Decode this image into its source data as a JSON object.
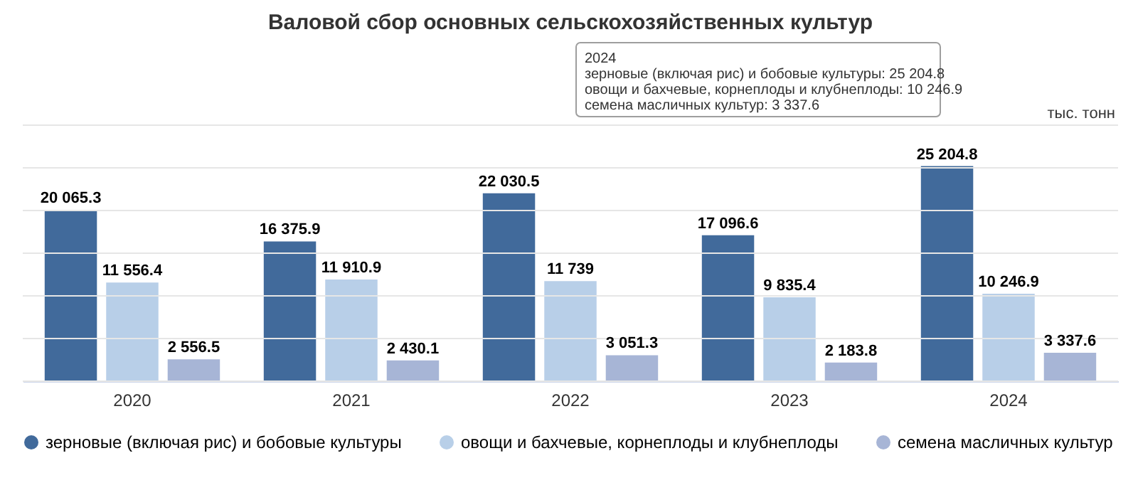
{
  "chart_data": {
    "type": "bar",
    "title": "Валовой сбор основных сельскохозяйственных культур",
    "categories": [
      "2020",
      "2021",
      "2022",
      "2023",
      "2024"
    ],
    "series": [
      {
        "name": "зерновые (включая рис) и бобовые культуры",
        "color": "#416a9b",
        "values": [
          20065.3,
          16375.9,
          22030.5,
          17096.6,
          25204.8
        ],
        "value_labels": [
          "20 065.3",
          "16 375.9",
          "22 030.5",
          "17 096.6",
          "25 204.8"
        ]
      },
      {
        "name": "овощи и бахчевые, корнеплоды и клубнеплоды",
        "color": "#b8cfe8",
        "values": [
          11556.4,
          11910.9,
          11739,
          9835.4,
          10246.9
        ],
        "value_labels": [
          "11 556.4",
          "11 910.9",
          "11 739",
          "9 835.4",
          "10 246.9"
        ]
      },
      {
        "name": "семена масличных культур",
        "color": "#a7b5d6",
        "values": [
          2556.5,
          2430.1,
          3051.3,
          2183.8,
          3337.6
        ],
        "value_labels": [
          "2 556.5",
          "2 430.1",
          "3 051.3",
          "2 183.8",
          "3 337.6"
        ]
      }
    ],
    "ylim": [
      0,
      30000
    ],
    "yticks": [
      {
        "value": 0,
        "label": null
      },
      {
        "value": 5000,
        "label": null
      },
      {
        "value": 10000,
        "label": null
      },
      {
        "value": 15000,
        "label": null
      },
      {
        "value": 20000,
        "label": null
      },
      {
        "value": 25000,
        "label": null
      },
      {
        "value": 30000,
        "label": null
      }
    ],
    "grid": "y",
    "tick_labels": "x",
    "legend": "bottom",
    "annotations": [
      "тыс. тонн",
      "2024",
      "зерновые (включая рис) и бобовые культуры: 25 204.8",
      "овощи и бахчевые, корнеплоды и клубнеплоды: 10 246.9",
      "семена масличных культур: 3 337.6"
    ]
  }
}
